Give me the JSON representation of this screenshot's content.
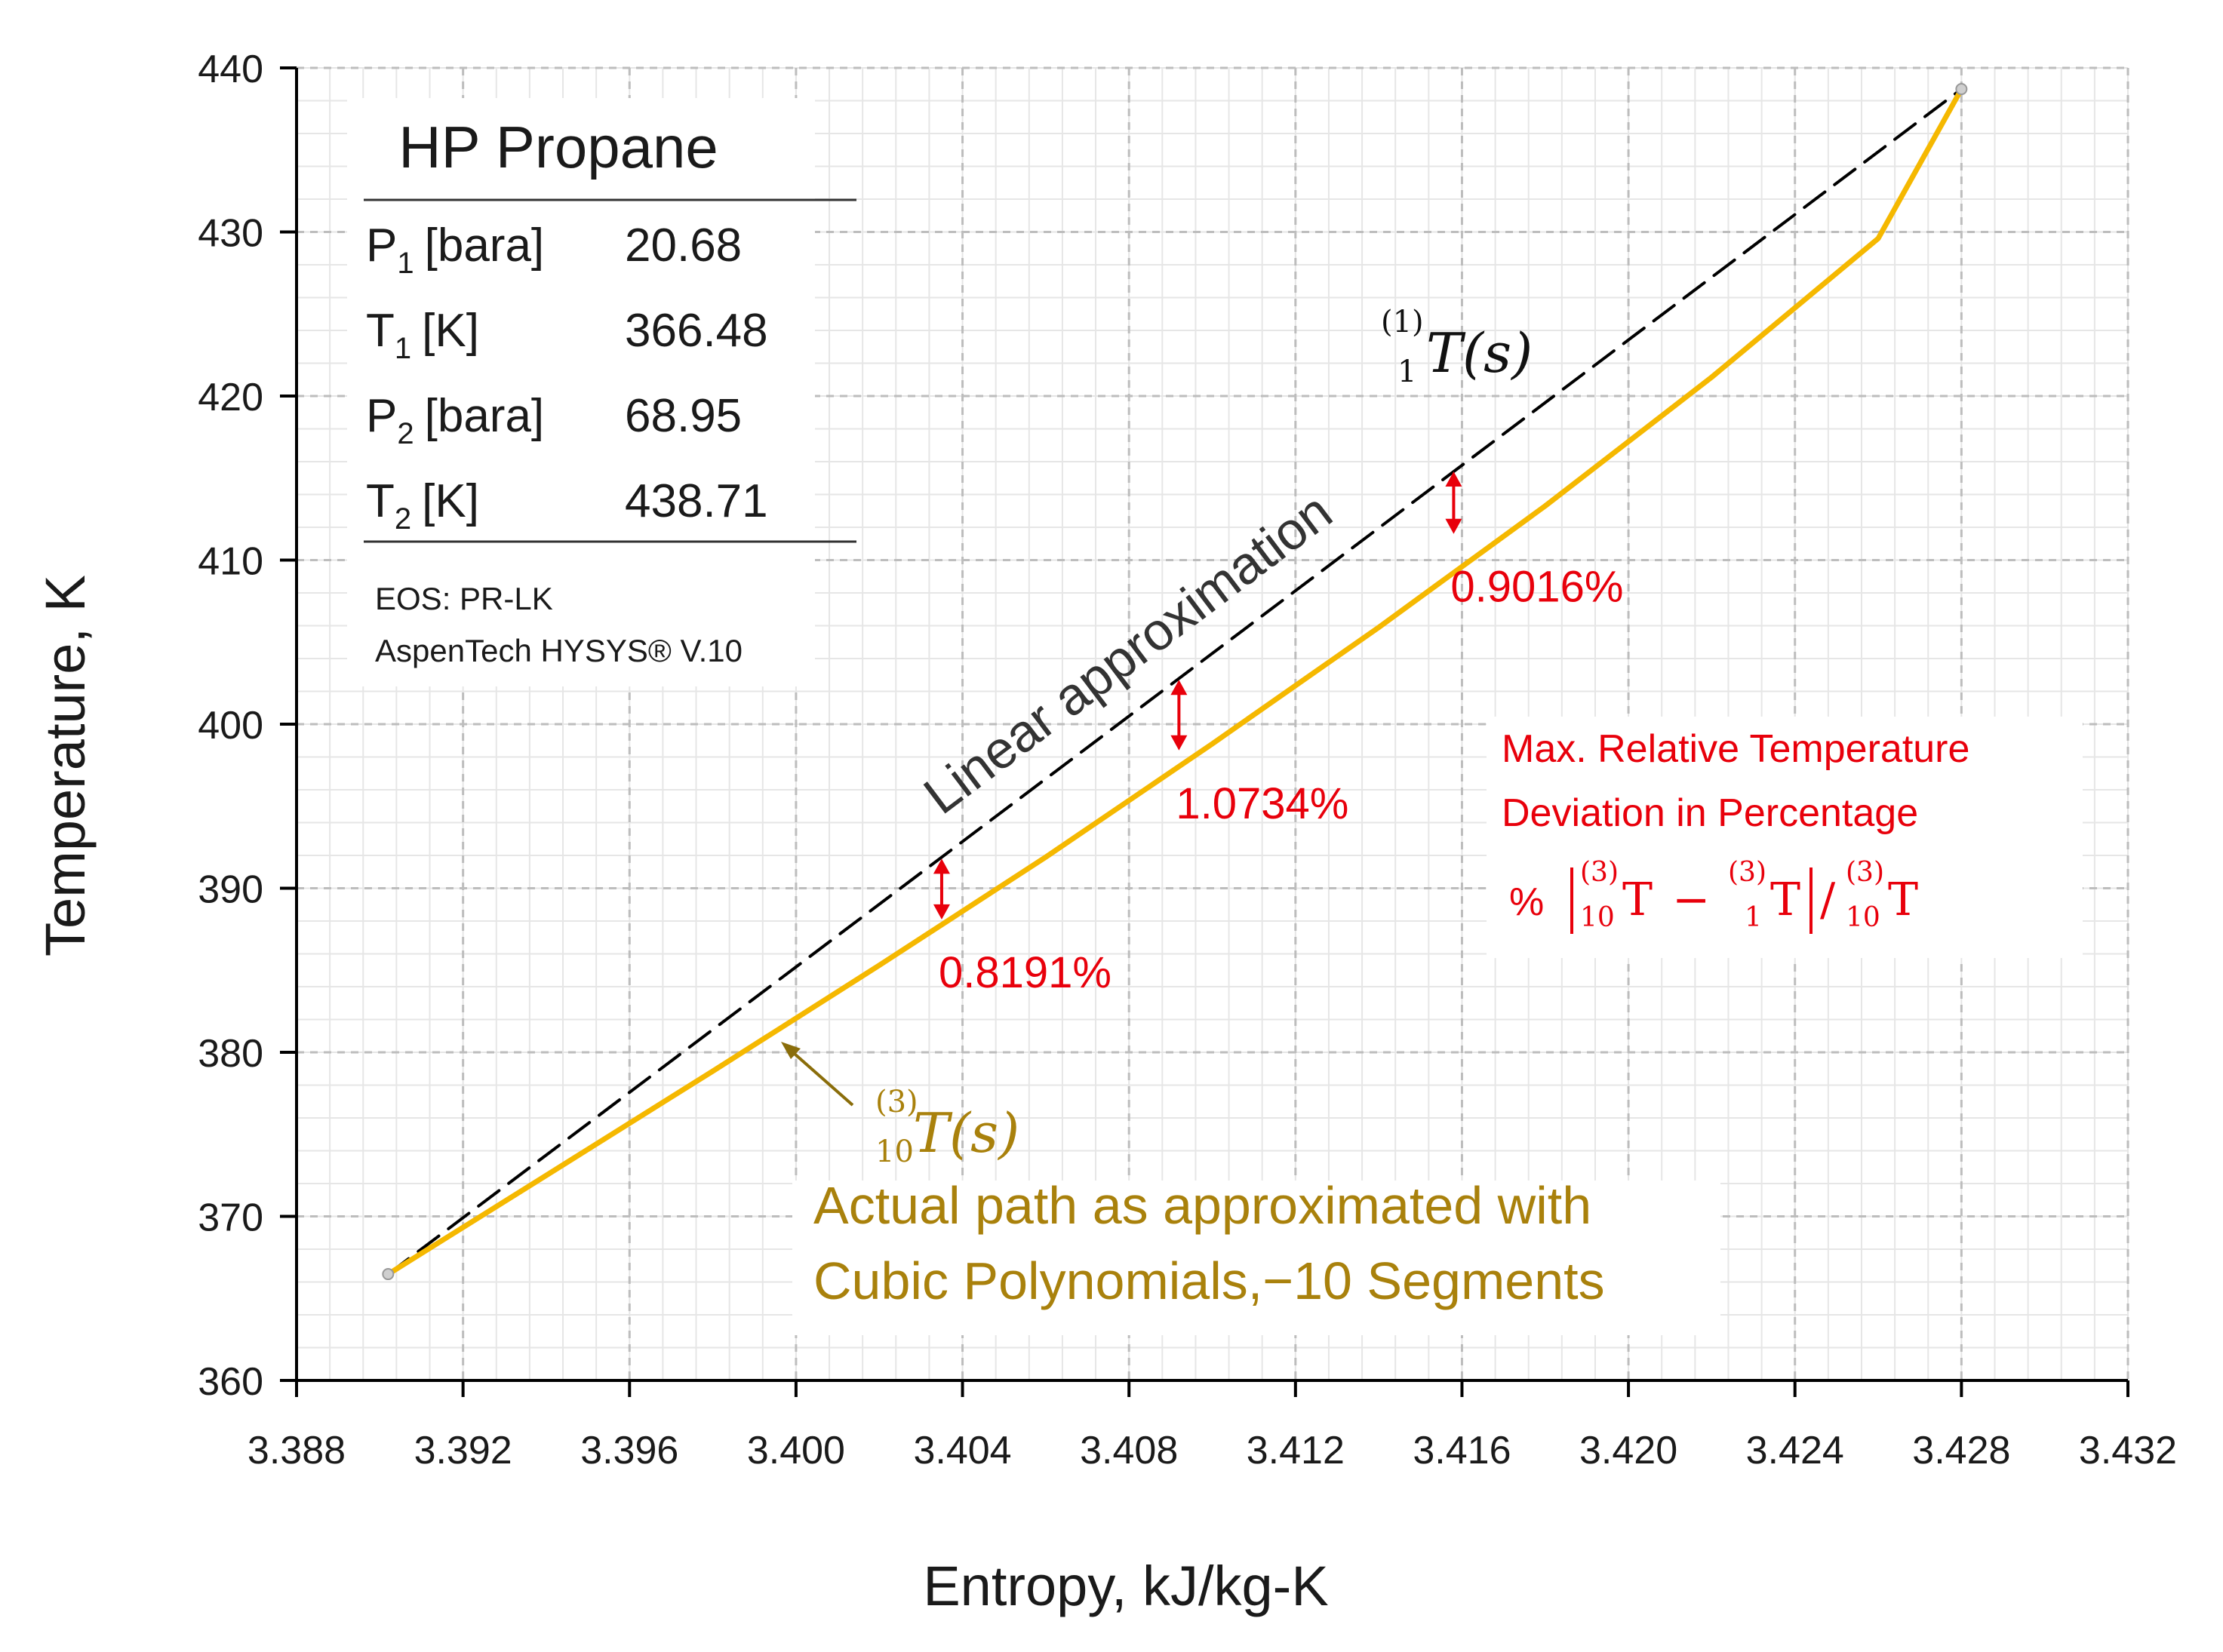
{
  "chart_data": {
    "type": "line",
    "xlabel": "Entropy, kJ/kg-K",
    "ylabel": "Temperature, K",
    "xlim": [
      3.388,
      3.432
    ],
    "ylim": [
      360,
      440
    ],
    "x_ticks": [
      "3.388",
      "3.392",
      "3.396",
      "3.400",
      "3.404",
      "3.408",
      "3.412",
      "3.416",
      "3.420",
      "3.424",
      "3.428",
      "3.432"
    ],
    "y_ticks": [
      "360",
      "370",
      "380",
      "390",
      "400",
      "410",
      "420",
      "430",
      "440"
    ],
    "grid": true,
    "series": [
      {
        "name": "Linear approximation",
        "style": "dashed",
        "color": "#000000",
        "x": [
          3.3902,
          3.428
        ],
        "y": [
          366.48,
          438.71
        ]
      },
      {
        "name": "Actual path (cubic polynomials, 10 segments)",
        "style": "solid",
        "color": "#f5b800",
        "x": [
          3.3902,
          3.394,
          3.398,
          3.402,
          3.406,
          3.41,
          3.414,
          3.418,
          3.422,
          3.426,
          3.428
        ],
        "y": [
          366.48,
          372.5,
          378.85,
          385.3,
          391.9,
          398.8,
          405.9,
          413.3,
          421.15,
          429.6,
          438.71
        ]
      }
    ],
    "deviations": [
      {
        "x": 3.4035,
        "y_top": 391.8,
        "y_bottom": 388.1,
        "label": "0.8191%"
      },
      {
        "x": 3.4092,
        "y_top": 402.7,
        "y_bottom": 398.4,
        "label": "1.0734%"
      },
      {
        "x": 3.4158,
        "y_top": 415.4,
        "y_bottom": 411.6,
        "label": "0.9016%"
      }
    ],
    "annotations": {
      "linear_label": "Linear approximation",
      "linear_func": {
        "pre": "(1)",
        "sub": "1",
        "body": "T(s)"
      },
      "cubic_func": {
        "pre": "(3)",
        "sub": "10",
        "body": "T(s)"
      },
      "actual_line1": "Actual path as approximated with",
      "actual_line2": "Cubic Polynomials,−10 Segments",
      "note_line1": "Max. Relative Temperature",
      "note_line2": "Deviation in Percentage",
      "formula": {
        "percent": "%",
        "sup3": "(3)",
        "sub10": "10",
        "sub1": "1",
        "T": "T",
        "minus": "−",
        "slash": "/"
      }
    },
    "info_box": {
      "title": "HP Propane",
      "rows": [
        {
          "label": "P",
          "sub": "1",
          "unit": "[bara]",
          "value": "20.68"
        },
        {
          "label": "T",
          "sub": "1",
          "unit": "[K]",
          "value": "366.48"
        },
        {
          "label": "P",
          "sub": "2",
          "unit": "[bara]",
          "value": "68.95"
        },
        {
          "label": "T",
          "sub": "2",
          "unit": "[K]",
          "value": "438.71"
        }
      ],
      "eos": "EOS: PR-LK",
      "software": "AspenTech HYSYS® V.10"
    },
    "colors": {
      "actual": "#f5b800",
      "linear": "#000000",
      "deviation": "#e8000b",
      "gold_text": "#a9810c",
      "grid": "#c8c8c8"
    }
  }
}
